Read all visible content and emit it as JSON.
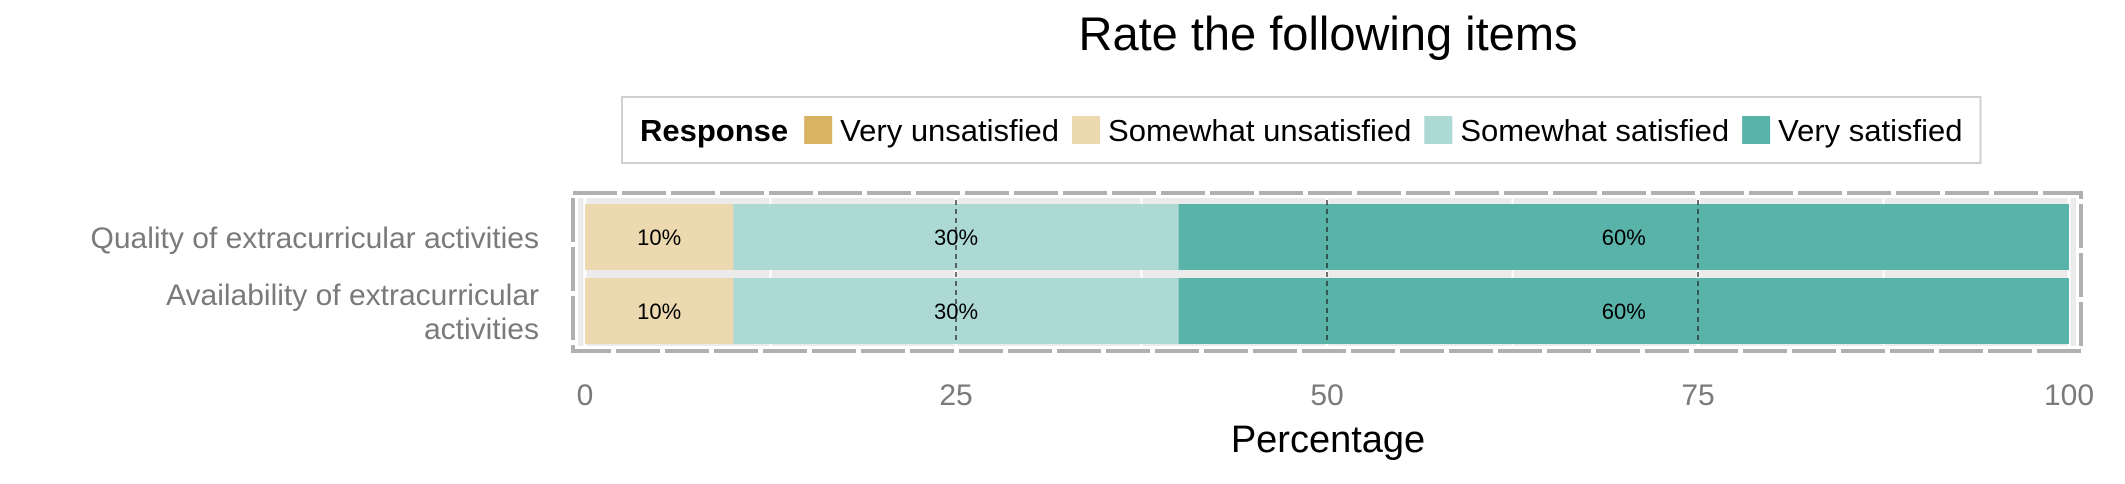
{
  "chart_data": {
    "type": "bar",
    "orientation": "horizontal",
    "stacked": true,
    "title": "Rate the following items",
    "xlabel": "Percentage",
    "ylabel": "",
    "xlim": [
      0,
      100
    ],
    "xticks": [
      0,
      25,
      50,
      75,
      100
    ],
    "legend": {
      "title": "Response",
      "position": "top"
    },
    "categories": [
      [
        "Quality of extracurricular activities"
      ],
      [
        "Availability of extracurricular",
        "activities"
      ]
    ],
    "series": [
      {
        "name": "Very unsatisfied",
        "color": "#d9b262",
        "values": [
          0,
          0
        ],
        "labels": [
          "",
          ""
        ]
      },
      {
        "name": "Somewhat unsatisfied",
        "color": "#ecd9b0",
        "values": [
          10,
          10
        ],
        "labels": [
          "10%",
          "10%"
        ]
      },
      {
        "name": "Somewhat satisfied",
        "color": "#add9d5",
        "values": [
          30,
          30
        ],
        "labels": [
          "30%",
          "30%"
        ]
      },
      {
        "name": "Very satisfied",
        "color": "#5ab3a9",
        "values": [
          60,
          60
        ],
        "labels": [
          "60%",
          "60%"
        ]
      }
    ]
  }
}
